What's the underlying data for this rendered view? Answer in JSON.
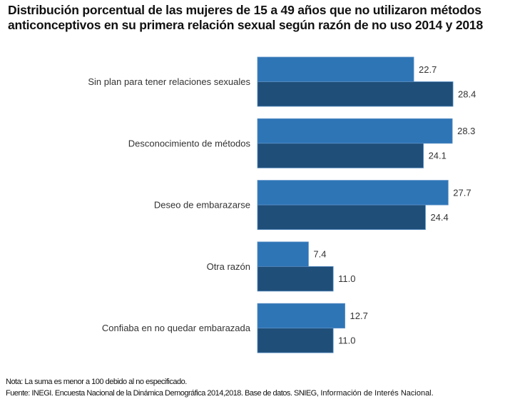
{
  "chart_data": {
    "type": "bar",
    "orientation": "horizontal",
    "title": "Distribución porcentual de las mujeres de 15 a 49 años que no utilizaron métodos anticonceptivos en su primera relación sexual según razón de no uso 2014 y 2018",
    "xlabel": "",
    "ylabel": "",
    "xlim": [
      0,
      30
    ],
    "grid": false,
    "legend": "none",
    "categories": [
      "Sin plan para tener relaciones sexuales",
      "Desconocimiento de métodos",
      "Deseo de embarazarse",
      "Otra razón",
      "Confiaba en no quedar embarazada"
    ],
    "series": [
      {
        "name": "2014",
        "color": "#2E75B6",
        "values": [
          22.7,
          28.3,
          27.7,
          7.4,
          12.7
        ],
        "labels": [
          "22.7",
          "28.3",
          "27.7",
          "7.4",
          "12.7"
        ]
      },
      {
        "name": "2018",
        "color": "#1F4E79",
        "values": [
          28.4,
          24.1,
          24.4,
          11.0,
          11.0
        ],
        "labels": [
          "28.4",
          "24.1",
          "24.4",
          "11.0",
          "11.0"
        ]
      }
    ]
  },
  "notes": {
    "nota": "Nota: La suma es menor a 100 debido al no especificado.",
    "fuente_a": "Fuente: INEGI. Encuesta Nacional de la Dinámica Demográfica 2014,2018. Base de datos. SNIEG,",
    "fuente_b": " Información de Interés Nacional."
  }
}
